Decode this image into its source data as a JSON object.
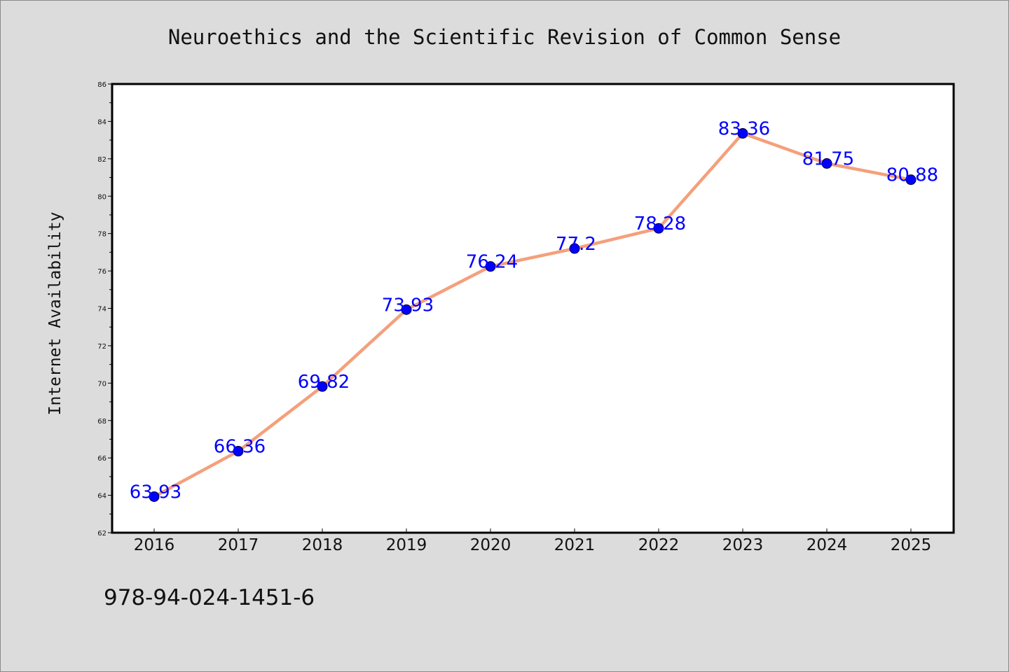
{
  "chart_data": {
    "type": "line",
    "title": "Neuroethics and the Scientific Revision of Common Sense",
    "xlabel": "",
    "ylabel": "Internet Availability",
    "categories": [
      "2016",
      "2017",
      "2018",
      "2019",
      "2020",
      "2021",
      "2022",
      "2023",
      "2024",
      "2025"
    ],
    "series": [
      {
        "values": [
          63.93,
          66.36,
          69.82,
          73.93,
          76.24,
          77.2,
          78.28,
          83.36,
          81.75,
          80.88
        ],
        "data_labels": [
          "63.93",
          "66.36",
          "69.82",
          "73.93",
          "76.24",
          "77.2",
          "78.28",
          "83.36",
          "81.75",
          "80.88"
        ],
        "line_color": "#f4a07c",
        "marker_color": "#0000ff",
        "label_color": "#0000ff"
      }
    ],
    "ylim": [
      62,
      86
    ],
    "yticks": [
      62,
      64,
      66,
      68,
      70,
      72,
      74,
      76,
      78,
      80,
      82,
      84,
      86
    ],
    "ytick_labels": [
      "62",
      "64",
      "66",
      "68",
      "70",
      "72",
      "74",
      "76",
      "78",
      "80",
      "82",
      "84",
      "86"
    ],
    "grid": false,
    "background_color": "#dcdcdc",
    "plot_background": "#ffffff"
  },
  "footer": {
    "isbn": "978-94-024-1451-6"
  }
}
